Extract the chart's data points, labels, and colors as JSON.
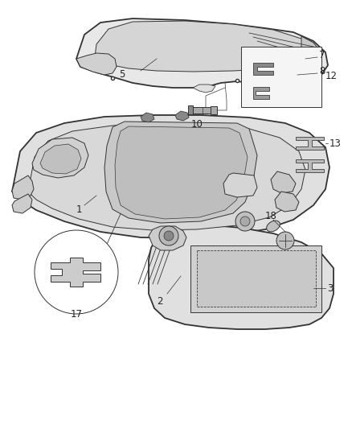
{
  "bg_color": "#ffffff",
  "line_color": "#333333",
  "fill_light": "#e8e8e8",
  "fill_mid": "#d0d0d0",
  "fill_dark": "#b0b0b0",
  "lw_main": 1.3,
  "lw_thin": 0.7,
  "lw_label": 0.5,
  "label_fs": 7.0,
  "fig_w": 4.38,
  "fig_h": 5.33,
  "dpi": 100
}
